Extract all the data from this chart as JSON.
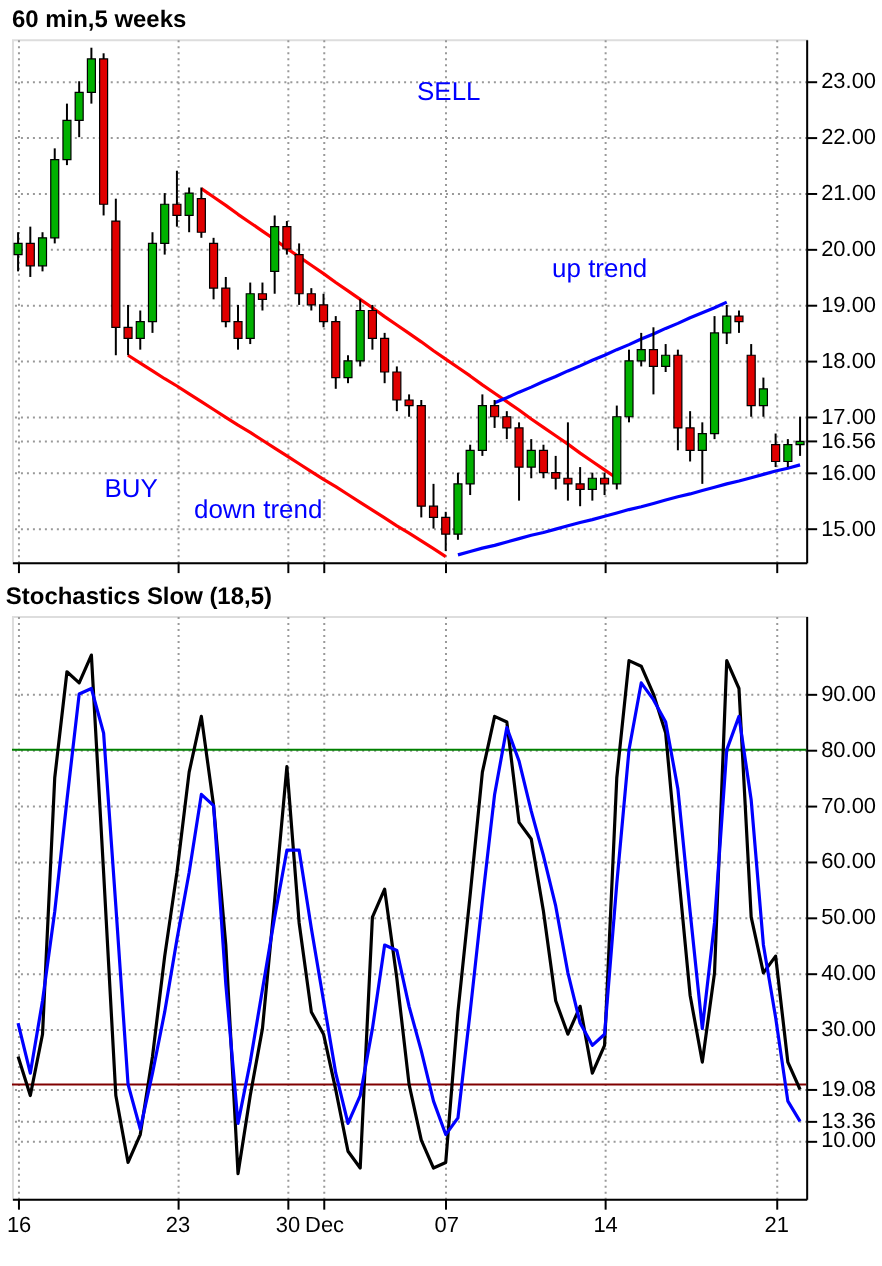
{
  "chart_data": [
    {
      "type": "candlestick",
      "title": "60 min,5 weeks",
      "categories": [
        null,
        null,
        null,
        null,
        null,
        null,
        null,
        null,
        null,
        null,
        null,
        null,
        null,
        null,
        null,
        null,
        null,
        null,
        null,
        null,
        null,
        null,
        null,
        null,
        null,
        null,
        null,
        null,
        null,
        null,
        null,
        null,
        null,
        null,
        null,
        null,
        null,
        null,
        null,
        null,
        null,
        null,
        null,
        null,
        null,
        null,
        null,
        null,
        null,
        null,
        null,
        null,
        null,
        null,
        null,
        null,
        null,
        null,
        null,
        null,
        null,
        null,
        null,
        null,
        null
      ],
      "ohlc": [
        [
          19.9,
          20.3,
          19.6,
          20.1
        ],
        [
          20.1,
          20.4,
          19.5,
          19.7
        ],
        [
          19.7,
          20.3,
          19.6,
          20.2
        ],
        [
          20.2,
          21.8,
          20.1,
          21.6
        ],
        [
          21.6,
          22.6,
          21.5,
          22.3
        ],
        [
          22.3,
          23.0,
          22.0,
          22.8
        ],
        [
          22.8,
          23.6,
          22.6,
          23.4
        ],
        [
          23.4,
          23.5,
          20.6,
          20.8
        ],
        [
          20.5,
          20.9,
          18.1,
          18.6
        ],
        [
          18.6,
          19.0,
          18.1,
          18.4
        ],
        [
          18.4,
          18.9,
          18.2,
          18.7
        ],
        [
          18.7,
          20.3,
          18.5,
          20.1
        ],
        [
          20.1,
          21.0,
          19.9,
          20.8
        ],
        [
          20.8,
          21.4,
          20.4,
          20.6
        ],
        [
          20.6,
          21.1,
          20.3,
          21.0
        ],
        [
          20.9,
          21.1,
          20.2,
          20.3
        ],
        [
          20.1,
          20.2,
          19.1,
          19.3
        ],
        [
          19.3,
          19.5,
          18.6,
          18.7
        ],
        [
          18.7,
          19.0,
          18.2,
          18.4
        ],
        [
          18.4,
          19.4,
          18.3,
          19.2
        ],
        [
          19.2,
          19.4,
          18.9,
          19.1
        ],
        [
          19.6,
          20.6,
          19.2,
          20.4
        ],
        [
          20.4,
          20.5,
          19.9,
          20.0
        ],
        [
          19.9,
          20.1,
          19.0,
          19.2
        ],
        [
          19.2,
          19.3,
          18.9,
          19.0
        ],
        [
          19.0,
          19.2,
          18.6,
          18.7
        ],
        [
          18.7,
          18.8,
          17.5,
          17.7
        ],
        [
          17.7,
          18.1,
          17.6,
          18.0
        ],
        [
          18.0,
          19.1,
          17.9,
          18.9
        ],
        [
          18.9,
          19.0,
          18.2,
          18.4
        ],
        [
          18.4,
          18.5,
          17.6,
          17.8
        ],
        [
          17.8,
          17.9,
          17.1,
          17.3
        ],
        [
          17.3,
          17.4,
          17.0,
          17.2
        ],
        [
          17.2,
          17.3,
          15.2,
          15.4
        ],
        [
          15.4,
          15.8,
          15.0,
          15.2
        ],
        [
          15.2,
          15.3,
          14.6,
          14.9
        ],
        [
          14.9,
          16.0,
          14.8,
          15.8
        ],
        [
          15.8,
          16.5,
          15.6,
          16.4
        ],
        [
          16.4,
          17.4,
          16.3,
          17.2
        ],
        [
          17.2,
          17.3,
          16.8,
          17.0
        ],
        [
          17.0,
          17.1,
          16.6,
          16.8
        ],
        [
          16.8,
          16.9,
          15.5,
          16.1
        ],
        [
          16.1,
          16.6,
          15.9,
          16.4
        ],
        [
          16.4,
          16.5,
          15.9,
          16.0
        ],
        [
          16.0,
          16.3,
          15.7,
          15.9
        ],
        [
          15.9,
          16.9,
          15.5,
          15.8
        ],
        [
          15.8,
          16.1,
          15.4,
          15.7
        ],
        [
          15.7,
          16.0,
          15.5,
          15.9
        ],
        [
          15.9,
          16.0,
          15.6,
          15.8
        ],
        [
          15.8,
          17.2,
          15.7,
          17.0
        ],
        [
          17.0,
          18.2,
          16.9,
          18.0
        ],
        [
          18.0,
          18.5,
          17.9,
          18.2
        ],
        [
          18.2,
          18.6,
          17.4,
          17.9
        ],
        [
          17.9,
          18.3,
          17.8,
          18.1
        ],
        [
          18.1,
          18.2,
          16.4,
          16.8
        ],
        [
          16.8,
          17.1,
          16.2,
          16.4
        ],
        [
          16.4,
          16.9,
          15.8,
          16.7
        ],
        [
          16.7,
          18.8,
          16.6,
          18.5
        ],
        [
          18.5,
          19.0,
          18.3,
          18.8
        ],
        [
          18.8,
          18.9,
          18.5,
          18.7
        ],
        [
          18.1,
          18.3,
          17.0,
          17.2
        ],
        [
          17.2,
          17.7,
          17.0,
          17.5
        ],
        [
          16.5,
          16.7,
          16.1,
          16.2
        ],
        [
          16.2,
          16.6,
          16.1,
          16.5
        ],
        [
          16.5,
          17.0,
          16.3,
          16.56
        ]
      ],
      "series": [
        {
          "type": "line",
          "color": "#ff0000",
          "values": [
            null,
            null,
            null,
            null,
            null,
            null,
            null,
            null,
            null,
            null,
            null,
            null,
            null,
            null,
            null,
            21.08,
            20.93,
            20.78,
            20.62,
            20.47,
            20.32,
            20.17,
            20.01,
            19.86,
            19.71,
            19.56,
            19.4,
            19.25,
            19.1,
            18.95,
            18.79,
            18.64,
            18.49,
            18.34,
            18.18,
            18.03,
            17.88,
            17.73,
            17.57,
            17.42,
            17.27,
            17.12,
            16.96,
            16.81,
            16.66,
            16.51,
            16.35,
            16.2,
            16.05,
            15.9,
            null,
            null,
            null,
            null,
            null,
            null,
            null,
            null,
            null,
            null,
            null,
            null,
            null,
            null,
            null
          ]
        },
        {
          "type": "line",
          "color": "#ff0000",
          "values": [
            null,
            null,
            null,
            null,
            null,
            null,
            null,
            null,
            null,
            18.1,
            17.96,
            17.82,
            17.68,
            17.55,
            17.41,
            17.27,
            17.13,
            16.99,
            16.85,
            16.72,
            16.58,
            16.44,
            16.3,
            16.16,
            16.02,
            15.88,
            15.75,
            15.61,
            15.47,
            15.33,
            15.19,
            15.05,
            14.92,
            14.78,
            14.64,
            14.5,
            null,
            null,
            null,
            null,
            null,
            null,
            null,
            null,
            null,
            null,
            null,
            null,
            null,
            null,
            null,
            null,
            null,
            null,
            null,
            null,
            null,
            null,
            null,
            null,
            null,
            null,
            null,
            null,
            null
          ]
        },
        {
          "type": "line",
          "color": "#0000ff",
          "values": [
            null,
            null,
            null,
            null,
            null,
            null,
            null,
            null,
            null,
            null,
            null,
            null,
            null,
            null,
            null,
            null,
            null,
            null,
            null,
            null,
            null,
            null,
            null,
            null,
            null,
            null,
            null,
            null,
            null,
            null,
            null,
            null,
            null,
            null,
            null,
            null,
            null,
            null,
            null,
            17.25,
            17.34,
            17.44,
            17.53,
            17.63,
            17.72,
            17.82,
            17.91,
            18.01,
            18.1,
            18.2,
            18.29,
            18.39,
            18.48,
            18.58,
            18.67,
            18.77,
            18.86,
            18.95,
            19.05,
            null,
            null,
            null,
            null,
            null,
            null
          ]
        },
        {
          "type": "line",
          "color": "#0000ff",
          "values": [
            null,
            null,
            null,
            null,
            null,
            null,
            null,
            null,
            null,
            null,
            null,
            null,
            null,
            null,
            null,
            null,
            null,
            null,
            null,
            null,
            null,
            null,
            null,
            null,
            null,
            null,
            null,
            null,
            null,
            null,
            null,
            null,
            null,
            null,
            null,
            null,
            14.53,
            14.59,
            14.65,
            14.7,
            14.76,
            14.82,
            14.88,
            14.93,
            14.99,
            15.05,
            15.11,
            15.16,
            15.22,
            15.28,
            15.34,
            15.39,
            15.45,
            15.51,
            15.57,
            15.62,
            15.68,
            15.74,
            15.8,
            15.85,
            15.91,
            15.97,
            16.03,
            16.08,
            16.14
          ]
        }
      ],
      "annotations": [
        "BUY",
        "SELL",
        "down trend",
        "up trend"
      ],
      "ylim": [
        14.4,
        23.75
      ],
      "yticks": [
        {
          "value": 15,
          "label": "15.00"
        },
        {
          "value": 16,
          "label": "16.00"
        },
        {
          "value": 16.56,
          "label": "16.56"
        },
        {
          "value": 17,
          "label": "17.00"
        },
        {
          "value": 18,
          "label": "18.00"
        },
        {
          "value": 19,
          "label": "19.00"
        },
        {
          "value": 20,
          "label": "20.00"
        },
        {
          "value": 21,
          "label": "21.00"
        },
        {
          "value": 22,
          "label": "22.00"
        },
        {
          "value": 23,
          "label": "23.00"
        }
      ],
      "grid": true,
      "tick_labels": "y"
    },
    {
      "type": "line",
      "title": "Stochastics Slow (18,5)",
      "categories": [
        "16",
        null,
        null,
        null,
        null,
        null,
        null,
        null,
        null,
        null,
        null,
        null,
        null,
        "23",
        null,
        null,
        null,
        null,
        null,
        null,
        null,
        null,
        "30",
        null,
        null,
        "Dec",
        null,
        null,
        null,
        null,
        null,
        null,
        null,
        null,
        null,
        "07",
        null,
        null,
        null,
        null,
        null,
        null,
        null,
        null,
        null,
        null,
        null,
        null,
        "14",
        null,
        null,
        null,
        null,
        null,
        null,
        null,
        null,
        null,
        null,
        null,
        null,
        null,
        "21",
        null,
        null
      ],
      "series": [
        {
          "color": "#000000",
          "values": [
            25,
            18,
            29,
            75,
            94,
            92,
            97,
            58,
            18,
            6,
            11,
            25,
            43,
            58,
            76,
            86,
            70,
            45,
            4,
            18,
            30,
            53,
            77,
            49,
            33,
            29,
            19,
            8,
            5,
            50,
            55,
            39,
            20,
            10,
            5,
            6,
            33,
            54,
            76,
            86,
            85,
            67,
            64,
            51,
            35,
            29,
            34,
            22,
            27,
            75,
            96,
            95,
            90,
            83,
            59,
            36,
            24,
            40,
            96,
            91,
            50,
            40,
            43,
            24,
            19.08
          ]
        },
        {
          "color": "#0000ff",
          "values": [
            31,
            22,
            35,
            51,
            71,
            90,
            91,
            83,
            52,
            20,
            12,
            22,
            33,
            46,
            58,
            72,
            70,
            38,
            13,
            24,
            37,
            50,
            62,
            62,
            48,
            35,
            22,
            13,
            18,
            30,
            45,
            44,
            34,
            26,
            17,
            11,
            14,
            33,
            53,
            72,
            84,
            78,
            69,
            61,
            52,
            40,
            31,
            27,
            29,
            56,
            80,
            92,
            89,
            85,
            73,
            51,
            30,
            49,
            80,
            86,
            71,
            45,
            32,
            17,
            13.36
          ]
        }
      ],
      "ref_lines": [
        {
          "axis": "y",
          "value": 80,
          "color": "#008000"
        },
        {
          "axis": "y",
          "value": 20,
          "color": "#800000"
        }
      ],
      "ylim": [
        -0.5,
        104
      ],
      "yticks": [
        {
          "value": 10,
          "label": "10.00"
        },
        {
          "value": 13.36,
          "label": "13.36"
        },
        {
          "value": 19.08,
          "label": "19.08"
        },
        {
          "value": 30,
          "label": "30.00"
        },
        {
          "value": 40,
          "label": "40.00"
        },
        {
          "value": 50,
          "label": "50.00"
        },
        {
          "value": 60,
          "label": "60.00"
        },
        {
          "value": 70,
          "label": "70.00"
        },
        {
          "value": 80,
          "label": "80.00"
        },
        {
          "value": 90,
          "label": "90.00"
        }
      ],
      "grid": true
    }
  ]
}
